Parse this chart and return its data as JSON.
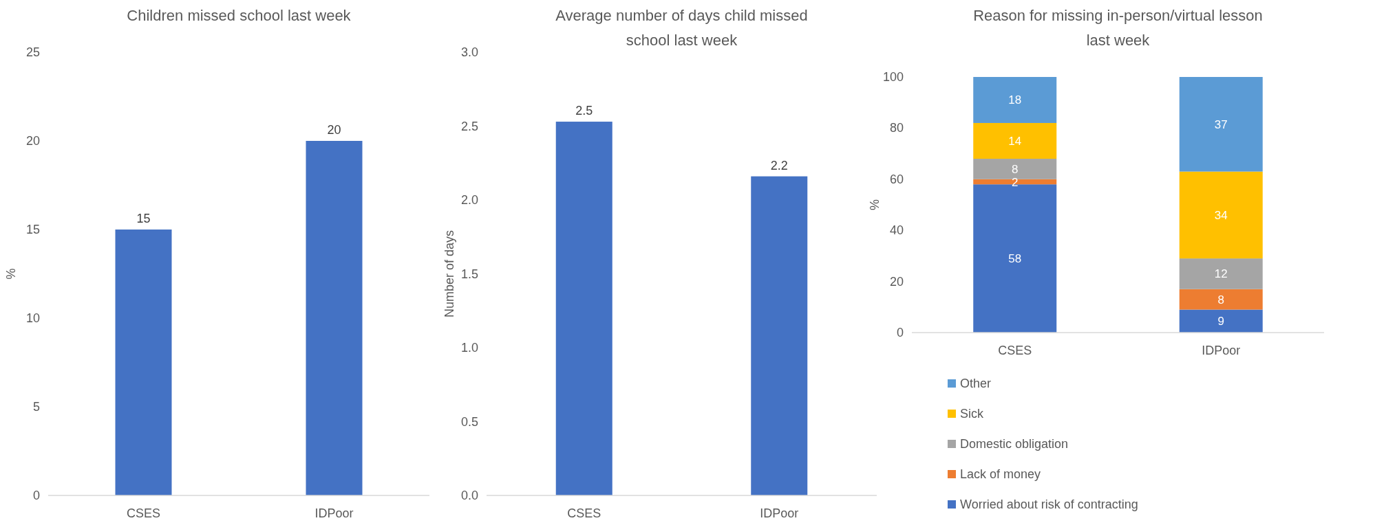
{
  "chart_data": [
    {
      "type": "bar",
      "title": "Children missed school last week",
      "ylabel": "%",
      "categories": [
        "CSES",
        "IDPoor"
      ],
      "values": [
        15,
        20
      ],
      "color": "#4472c4",
      "ylim": [
        0,
        25
      ],
      "yticks": [
        0,
        5,
        10,
        15,
        20,
        25
      ],
      "data_labels": true,
      "grid": false,
      "legend": false
    },
    {
      "type": "bar",
      "title": "Average number of days child missed school last week",
      "ylabel": "Number of days",
      "categories": [
        "CSES",
        "IDPoor"
      ],
      "values": [
        2.53,
        2.16
      ],
      "value_labels": [
        "2.5",
        "2.2"
      ],
      "color": "#4472c4",
      "ylim": [
        0,
        3
      ],
      "yticks": [
        {
          "value": 0,
          "label": "0.0"
        },
        {
          "value": 0.5,
          "label": "0.5"
        },
        {
          "value": 1,
          "label": "1.0"
        },
        {
          "value": 1.5,
          "label": "1.5"
        },
        {
          "value": 2,
          "label": "2.0"
        },
        {
          "value": 2.5,
          "label": "2.5"
        },
        {
          "value": 3,
          "label": "3.0"
        }
      ],
      "grid": false,
      "legend": false
    },
    {
      "type": "bar",
      "title": "Reason for missing in-person/virtual lesson last week",
      "ylabel": "%",
      "categories": [
        "CSES",
        "IDPoor"
      ],
      "stacked": true,
      "ylim": [
        0,
        100
      ],
      "yticks": [
        0,
        20,
        40,
        60,
        80,
        100
      ],
      "data_labels": true,
      "grid": false,
      "legend": "bottom",
      "series": [
        {
          "name": "Worried about risk of contracting",
          "color": "#4472c4",
          "values": [
            58,
            9
          ]
        },
        {
          "name": "Lack of money",
          "color": "#ed7d31",
          "values": [
            2,
            8
          ]
        },
        {
          "name": "Domestic obligation",
          "color": "#a5a5a5",
          "values": [
            8,
            12
          ]
        },
        {
          "name": "Sick",
          "color": "#ffc000",
          "values": [
            14,
            34
          ]
        },
        {
          "name": "Other",
          "color": "#5b9bd5",
          "values": [
            18,
            37
          ]
        }
      ]
    }
  ]
}
